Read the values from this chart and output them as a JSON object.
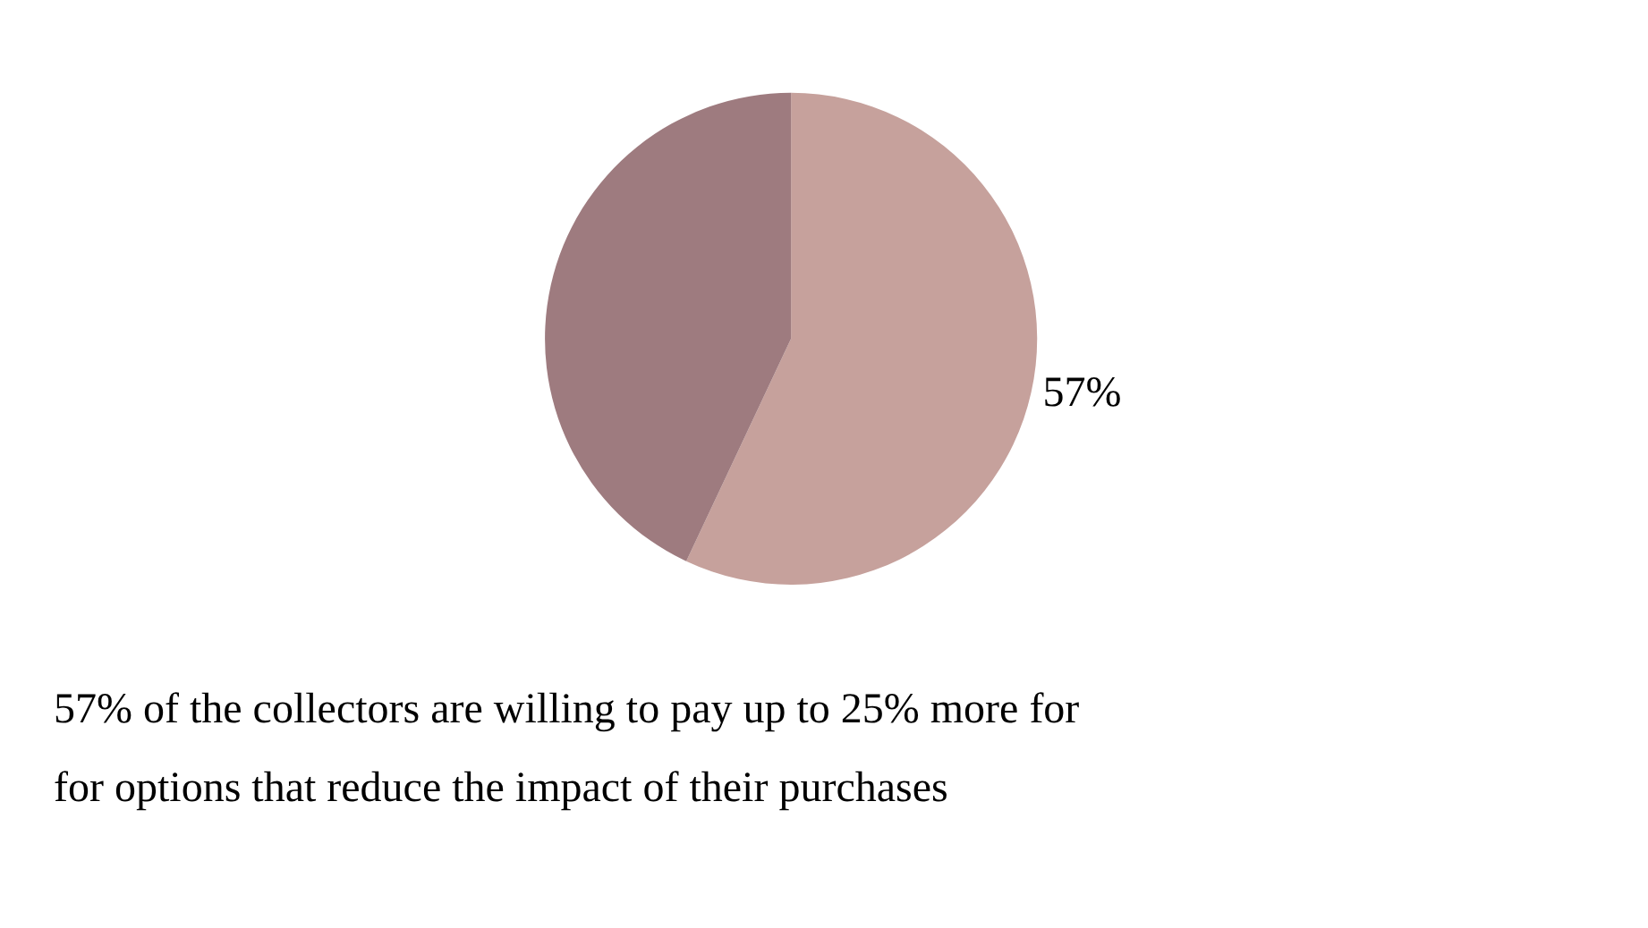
{
  "chart_data": {
    "type": "pie",
    "categories": [
      null,
      null
    ],
    "values": [
      57,
      43
    ],
    "colors": [
      "#c6a19c",
      "#9e7b7f"
    ],
    "value_labels": [
      "57%",
      null
    ],
    "legend": false,
    "annotations": [
      "57% of the collectors are willing to pay up to 25% more for",
      "for options that reduce the impact of their purchases"
    ]
  }
}
